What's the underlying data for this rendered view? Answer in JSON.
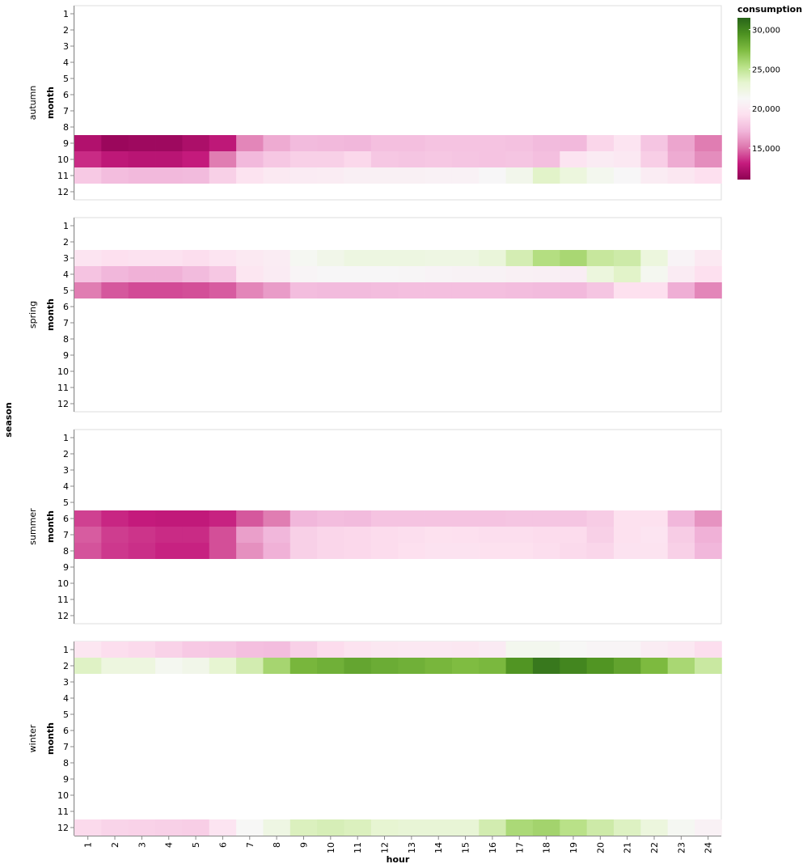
{
  "chart_data": {
    "type": "heatmap",
    "x_field": "hour",
    "y_field": "month",
    "facet_field": "season",
    "color_field": "consumption",
    "hours": [
      "1",
      "2",
      "3",
      "4",
      "5",
      "6",
      "7",
      "8",
      "9",
      "10",
      "11",
      "12",
      "13",
      "14",
      "15",
      "16",
      "17",
      "18",
      "19",
      "20",
      "21",
      "22",
      "23",
      "24"
    ],
    "months": [
      "1",
      "2",
      "3",
      "4",
      "5",
      "6",
      "7",
      "8",
      "9",
      "10",
      "11",
      "12"
    ],
    "color_domain": [
      11000,
      31500
    ],
    "color_scheme": "PiYG",
    "legend": {
      "title": "consumption",
      "ticks": [
        {
          "value": 30000,
          "label": "30,000"
        },
        {
          "value": 25000,
          "label": "25,000"
        },
        {
          "value": 20000,
          "label": "20,000"
        },
        {
          "value": 15000,
          "label": "15,000"
        }
      ],
      "position": "top-right"
    },
    "facets": [
      {
        "season": "autumn",
        "rows": [
          {
            "month": 9,
            "values": [
              12300,
              11500,
              11600,
              11600,
              12100,
              12800,
              15600,
              16800,
              17400,
              17300,
              17200,
              17600,
              17600,
              17800,
              17800,
              17800,
              17700,
              17400,
              17300,
              18700,
              19600,
              17900,
              16600,
              15300
            ]
          },
          {
            "month": 10,
            "values": [
              13400,
              12800,
              12600,
              12600,
              13000,
              15300,
              17300,
              18000,
              18400,
              18400,
              18800,
              18000,
              17900,
              18000,
              17900,
              17800,
              17900,
              17600,
              19600,
              20200,
              19900,
              18300,
              16800,
              15800
            ]
          },
          {
            "month": 11,
            "values": [
              18100,
              17500,
              17300,
              17300,
              17400,
              18400,
              19500,
              20000,
              20200,
              20300,
              20500,
              20600,
              20600,
              20700,
              20700,
              21200,
              21900,
              23500,
              22600,
              21700,
              21200,
              20300,
              19800,
              19200
            ]
          }
        ]
      },
      {
        "season": "spring",
        "rows": [
          {
            "month": 3,
            "values": [
              19600,
              19200,
              19400,
              19400,
              19100,
              19600,
              20000,
              20300,
              21500,
              22000,
              22400,
              22400,
              22400,
              22300,
              22300,
              22800,
              24100,
              25500,
              25900,
              24700,
              24400,
              22600,
              20900,
              20000
            ]
          },
          {
            "month": 4,
            "values": [
              17800,
              17200,
              17000,
              17000,
              17400,
              18000,
              19700,
              20200,
              21000,
              21200,
              21200,
              21200,
              21100,
              20900,
              20800,
              20800,
              20600,
              20500,
              20400,
              22600,
              23500,
              21600,
              20200,
              19200
            ]
          },
          {
            "month": 5,
            "values": [
              15300,
              14400,
              14100,
              14100,
              14200,
              14500,
              15600,
              16300,
              17500,
              17400,
              17400,
              17500,
              17600,
              17600,
              17600,
              17600,
              17500,
              17400,
              17300,
              17900,
              19300,
              19200,
              16900,
              15600
            ]
          }
        ]
      },
      {
        "season": "summer",
        "rows": [
          {
            "month": 6,
            "values": [
              13900,
              13300,
              13000,
              12900,
              12900,
              13200,
              14400,
              15300,
              17200,
              17500,
              17400,
              17800,
              17800,
              17800,
              17800,
              17800,
              17900,
              17900,
              17900,
              18200,
              19300,
              19300,
              17200,
              16000
            ]
          },
          {
            "month": 7,
            "values": [
              14500,
              13800,
              13600,
              13400,
              13400,
              14200,
              16400,
              17200,
              18400,
              18700,
              18800,
              19000,
              19100,
              19300,
              19200,
              19100,
              19100,
              19000,
              19000,
              18400,
              19300,
              19600,
              18200,
              17000
            ]
          },
          {
            "month": 8,
            "values": [
              14300,
              13700,
              13500,
              13200,
              13200,
              14200,
              15900,
              17000,
              18400,
              18700,
              18800,
              19000,
              19200,
              19400,
              19400,
              19300,
              19300,
              19100,
              18900,
              18700,
              19400,
              19500,
              18400,
              17200
            ]
          }
        ]
      },
      {
        "season": "winter",
        "rows": [
          {
            "month": 1,
            "values": [
              19700,
              19100,
              18900,
              18500,
              18100,
              18000,
              17600,
              17500,
              18400,
              19000,
              19500,
              19800,
              19900,
              19900,
              19800,
              20100,
              21700,
              21700,
              21300,
              21000,
              21000,
              20300,
              19900,
              19100
            ]
          },
          {
            "month": 2,
            "values": [
              23600,
              22500,
              22500,
              21600,
              22000,
              23200,
              24200,
              26000,
              27700,
              28000,
              28500,
              28200,
              28000,
              27700,
              27400,
              27600,
              29300,
              30600,
              30000,
              29300,
              28600,
              27500,
              25900,
              24600
            ]
          },
          {
            "month": 12,
            "values": [
              18900,
              18600,
              18500,
              18400,
              18300,
              19600,
              21300,
              22300,
              23800,
              24000,
              23800,
              23200,
              23000,
              23000,
              23000,
              24200,
              25800,
              26100,
              25300,
              24400,
              23700,
              22600,
              21500,
              20700
            ]
          }
        ]
      }
    ]
  },
  "axes": {
    "x_title": "hour",
    "y_title": "month",
    "facet_title": "season"
  }
}
